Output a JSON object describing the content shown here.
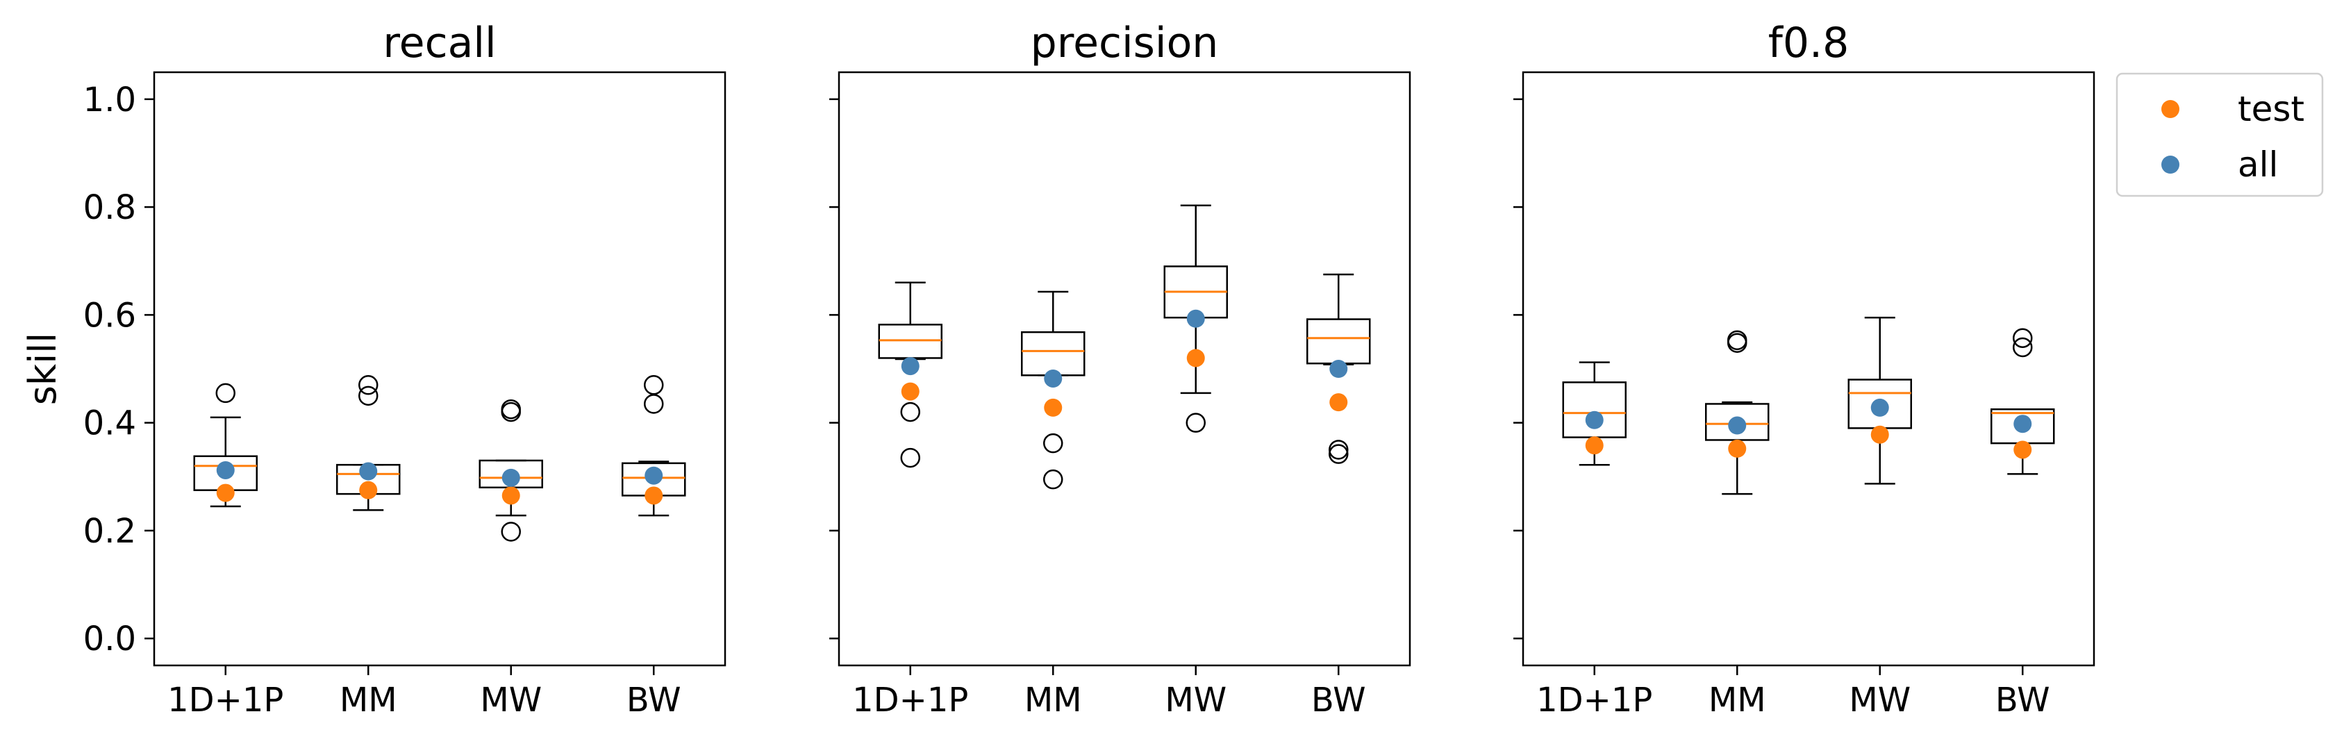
{
  "chart_data": {
    "type": "box",
    "ylabel": "skill",
    "ylim": [
      -0.05,
      1.05
    ],
    "yticks": [
      0.0,
      0.2,
      0.4,
      0.6,
      0.8,
      1.0
    ],
    "ytick_labels": [
      "0.0",
      "0.2",
      "0.4",
      "0.6",
      "0.8",
      "1.0"
    ],
    "categories": [
      "1D+1P",
      "MM",
      "MW",
      "BW"
    ],
    "colors": {
      "test": "#ff7f0e",
      "all": "#4682b4",
      "median": "#ff7f0e",
      "box": "#000000"
    },
    "legend": {
      "placement": "outside-right",
      "items": [
        {
          "label": "test",
          "color": "#ff7f0e"
        },
        {
          "label": "all",
          "color": "#4682b4"
        }
      ]
    },
    "panels": [
      {
        "title": "recall",
        "boxes": [
          {
            "category": "1D+1P",
            "whisker_low": 0.245,
            "q1": 0.275,
            "median": 0.32,
            "q3": 0.338,
            "whisker_high": 0.41,
            "fliers": [
              0.455
            ],
            "test": 0.27,
            "all": 0.312
          },
          {
            "category": "MM",
            "whisker_low": 0.238,
            "q1": 0.268,
            "median": 0.305,
            "q3": 0.322,
            "whisker_high": 0.322,
            "fliers": [
              0.45,
              0.47
            ],
            "test": 0.275,
            "all": 0.31
          },
          {
            "category": "MW",
            "whisker_low": 0.228,
            "q1": 0.28,
            "median": 0.298,
            "q3": 0.33,
            "whisker_high": 0.33,
            "fliers": [
              0.198,
              0.42,
              0.425
            ],
            "test": 0.265,
            "all": 0.298
          },
          {
            "category": "BW",
            "whisker_low": 0.228,
            "q1": 0.265,
            "median": 0.298,
            "q3": 0.325,
            "whisker_high": 0.328,
            "fliers": [
              0.435,
              0.47
            ],
            "test": 0.265,
            "all": 0.302
          }
        ]
      },
      {
        "title": "precision",
        "boxes": [
          {
            "category": "1D+1P",
            "whisker_low": 0.518,
            "q1": 0.52,
            "median": 0.553,
            "q3": 0.582,
            "whisker_high": 0.66,
            "fliers": [
              0.335,
              0.42
            ],
            "test": 0.458,
            "all": 0.505
          },
          {
            "category": "MM",
            "whisker_low": 0.488,
            "q1": 0.488,
            "median": 0.533,
            "q3": 0.568,
            "whisker_high": 0.643,
            "fliers": [
              0.295,
              0.362
            ],
            "test": 0.428,
            "all": 0.482
          },
          {
            "category": "MW",
            "whisker_low": 0.455,
            "q1": 0.595,
            "median": 0.643,
            "q3": 0.69,
            "whisker_high": 0.803,
            "fliers": [
              0.4
            ],
            "test": 0.52,
            "all": 0.593
          },
          {
            "category": "BW",
            "whisker_low": 0.508,
            "q1": 0.51,
            "median": 0.557,
            "q3": 0.592,
            "whisker_high": 0.675,
            "fliers": [
              0.342,
              0.35
            ],
            "test": 0.438,
            "all": 0.5
          }
        ]
      },
      {
        "title": "f0.8",
        "boxes": [
          {
            "category": "1D+1P",
            "whisker_low": 0.322,
            "q1": 0.373,
            "median": 0.418,
            "q3": 0.475,
            "whisker_high": 0.512,
            "fliers": [],
            "test": 0.358,
            "all": 0.405
          },
          {
            "category": "MM",
            "whisker_low": 0.268,
            "q1": 0.368,
            "median": 0.398,
            "q3": 0.435,
            "whisker_high": 0.438,
            "fliers": [
              0.548,
              0.553
            ],
            "test": 0.352,
            "all": 0.395
          },
          {
            "category": "MW",
            "whisker_low": 0.287,
            "q1": 0.39,
            "median": 0.455,
            "q3": 0.48,
            "whisker_high": 0.595,
            "fliers": [],
            "test": 0.378,
            "all": 0.428
          },
          {
            "category": "BW",
            "whisker_low": 0.305,
            "q1": 0.362,
            "median": 0.418,
            "q3": 0.425,
            "whisker_high": 0.425,
            "fliers": [
              0.54,
              0.557
            ],
            "test": 0.35,
            "all": 0.398
          }
        ]
      }
    ]
  }
}
